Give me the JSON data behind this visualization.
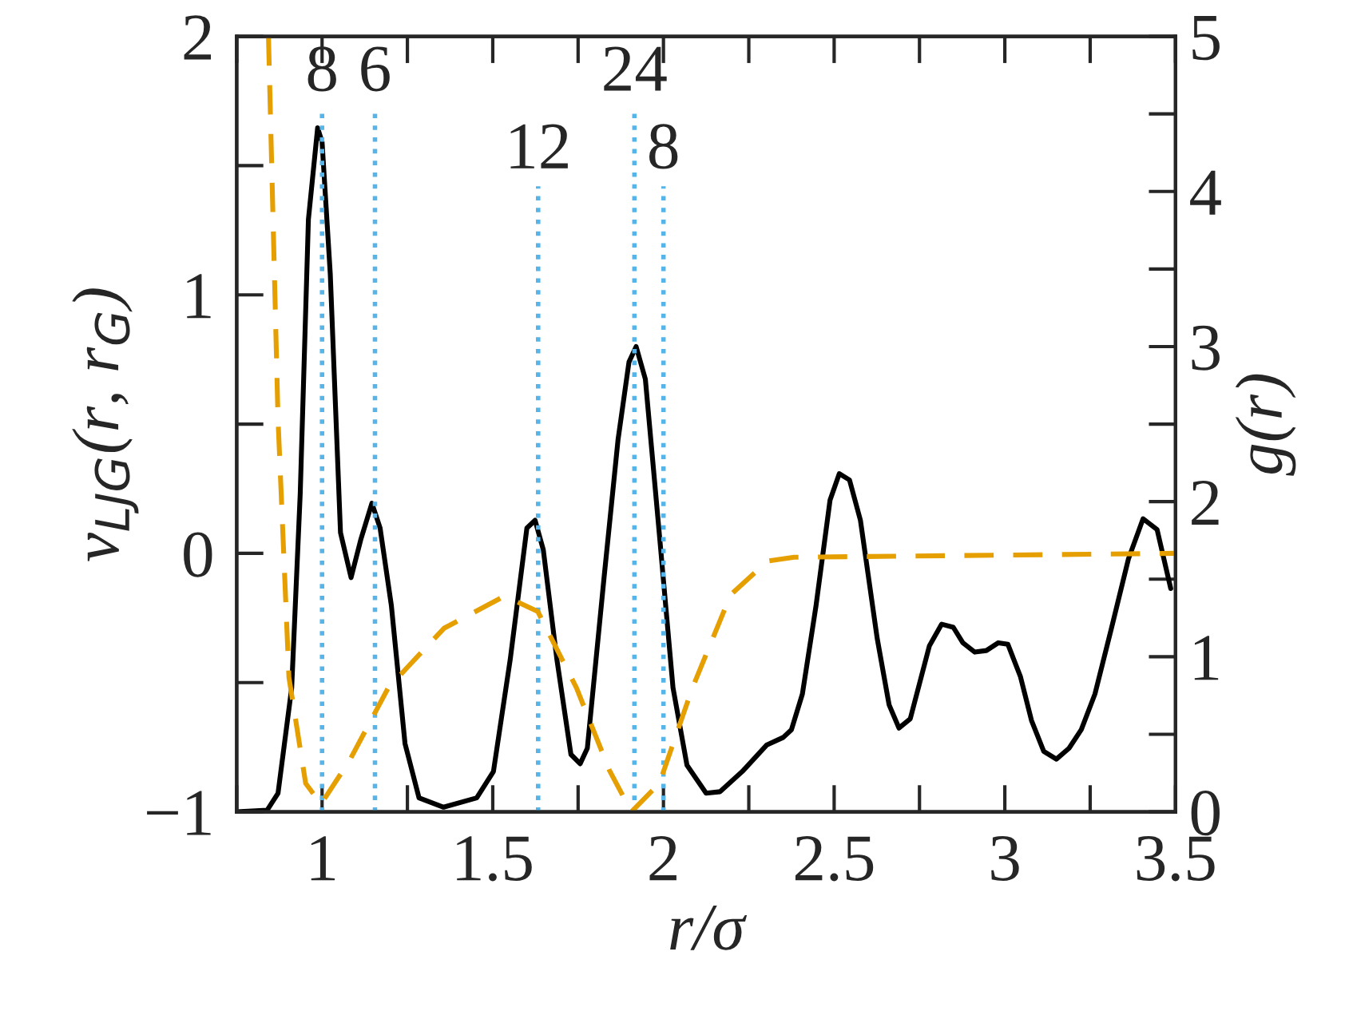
{
  "chart_data": {
    "type": "line",
    "xlabel": "r/σ",
    "ylabel": "v$_{LJG}$(r, r$_{G}$)",
    "y2label": "g(r)",
    "xlim": [
      0.75,
      3.5
    ],
    "xticks": [
      1,
      1.5,
      2,
      2.5,
      3,
      3.5
    ],
    "ylim": [
      -1,
      2
    ],
    "yticks": [
      {
        "value": -1,
        "label": "−1"
      },
      0,
      1,
      2
    ],
    "y2lim": [
      0,
      5
    ],
    "y2ticks": [
      0,
      1,
      2,
      3,
      4,
      5
    ],
    "grid": false,
    "legend": false,
    "series": [
      {
        "color": "#000000",
        "axis": "y2",
        "line_style": "solid",
        "x": [
          0.75,
          0.839,
          0.871,
          0.911,
          0.936,
          0.96,
          0.987,
          1.0,
          1.024,
          1.054,
          1.085,
          1.114,
          1.146,
          1.17,
          1.203,
          1.243,
          1.284,
          1.356,
          1.453,
          1.502,
          1.551,
          1.6,
          1.624,
          1.648,
          1.688,
          1.729,
          1.756,
          1.777,
          1.826,
          1.867,
          1.899,
          1.92,
          1.947,
          1.988,
          2.028,
          2.069,
          2.125,
          2.166,
          2.231,
          2.302,
          2.351,
          2.375,
          2.407,
          2.447,
          2.488,
          2.515,
          2.545,
          2.577,
          2.626,
          2.661,
          2.69,
          2.723,
          2.779,
          2.815,
          2.849,
          2.877,
          2.912,
          2.946,
          2.981,
          3.009,
          3.046,
          3.078,
          3.114,
          3.151,
          3.188,
          3.224,
          3.264,
          3.313,
          3.362,
          3.405,
          3.446,
          3.486
        ],
        "values": [
          0.0,
          0.01,
          0.12,
          0.8,
          2.05,
          3.82,
          4.41,
          4.32,
          3.47,
          1.8,
          1.51,
          1.76,
          1.99,
          1.83,
          1.33,
          0.44,
          0.09,
          0.03,
          0.09,
          0.26,
          0.98,
          1.83,
          1.88,
          1.69,
          0.98,
          0.37,
          0.31,
          0.41,
          1.51,
          2.4,
          2.9,
          3.0,
          2.79,
          1.79,
          0.8,
          0.3,
          0.12,
          0.13,
          0.26,
          0.43,
          0.48,
          0.53,
          0.76,
          1.33,
          2.01,
          2.18,
          2.14,
          1.88,
          1.12,
          0.69,
          0.54,
          0.6,
          1.07,
          1.21,
          1.19,
          1.09,
          1.03,
          1.04,
          1.09,
          1.08,
          0.87,
          0.59,
          0.39,
          0.34,
          0.41,
          0.53,
          0.76,
          1.19,
          1.63,
          1.89,
          1.82,
          1.44
        ]
      },
      {
        "color": "#e69f00",
        "axis": "y",
        "line_style": "dashed",
        "x": [
          0.843,
          0.871,
          0.903,
          0.952,
          0.997,
          1.081,
          1.194,
          1.357,
          1.535,
          1.632,
          1.745,
          1.842,
          1.906,
          1.988,
          2.085,
          2.197,
          2.305,
          2.383,
          3.5
        ],
        "values": [
          2.0,
          0.52,
          -0.48,
          -0.89,
          -0.97,
          -0.8,
          -0.52,
          -0.29,
          -0.165,
          -0.225,
          -0.52,
          -0.84,
          -1.0,
          -0.89,
          -0.52,
          -0.16,
          -0.03,
          -0.015,
          0.0
        ]
      }
    ],
    "ref_lines": [
      {
        "axis": "x",
        "value": 1.0,
        "color": "#56b4e9",
        "line_style": "dotted"
      },
      {
        "axis": "x",
        "value": 1.155,
        "color": "#56b4e9",
        "line_style": "dotted"
      },
      {
        "axis": "x",
        "value": 1.633,
        "color": "#56b4e9",
        "line_style": "dotted"
      },
      {
        "axis": "x",
        "value": 1.915,
        "color": "#56b4e9",
        "line_style": "dotted"
      },
      {
        "axis": "x",
        "value": 2.0,
        "color": "#56b4e9",
        "line_style": "dotted"
      }
    ],
    "annotations": [
      {
        "text": "8",
        "x": 1.0,
        "y": 1.72
      },
      {
        "text": "6",
        "x": 1.155,
        "y": 1.72
      },
      {
        "text": "12",
        "x": 1.633,
        "y": 1.42
      },
      {
        "text": "24",
        "x": 1.915,
        "y": 1.72
      },
      {
        "text": "8",
        "x": 2.0,
        "y": 1.42
      }
    ]
  }
}
